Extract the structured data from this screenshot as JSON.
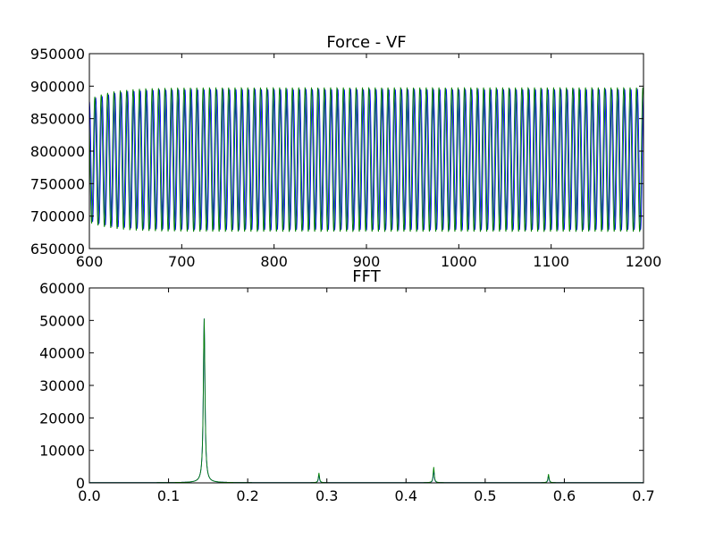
{
  "chart_data": [
    {
      "type": "line",
      "title": "Force - VF",
      "xlabel": "",
      "ylabel": "",
      "xlim": [
        600,
        1200
      ],
      "ylim": [
        650000,
        950000
      ],
      "xticks": [
        600,
        700,
        800,
        900,
        1000,
        1100,
        1200
      ],
      "yticks": [
        650000,
        700000,
        750000,
        800000,
        850000,
        900000,
        950000
      ],
      "grid": false,
      "legend": "none",
      "oscillation": {
        "period": 6.9,
        "start_max": 880000,
        "start_min": 690000,
        "settled_max": 898000,
        "settled_min": 676000
      },
      "series": [
        {
          "color": "#0000ff",
          "phase": 0.0,
          "max_offset": -3000,
          "min_offset": 3000
        },
        {
          "color": "#008000",
          "phase": 0.9,
          "max_offset": 0,
          "min_offset": 0
        }
      ]
    },
    {
      "type": "line",
      "title": "FFT",
      "xlabel": "",
      "ylabel": "",
      "xlim": [
        0.0,
        0.7
      ],
      "ylim": [
        0,
        60000
      ],
      "xticks": [
        "0.0",
        "0.1",
        "0.2",
        "0.3",
        "0.4",
        "0.5",
        "0.6",
        "0.7"
      ],
      "yticks": [
        0,
        10000,
        20000,
        30000,
        40000,
        50000,
        60000
      ],
      "grid": false,
      "legend": "none",
      "peaks": [
        {
          "x": 0.145,
          "y": 50500
        },
        {
          "x": 0.29,
          "y": 3000
        },
        {
          "x": 0.435,
          "y": 4800
        },
        {
          "x": 0.58,
          "y": 2600
        }
      ],
      "series": [
        {
          "color": "#0000ff",
          "scale": 0.8
        },
        {
          "color": "#008000",
          "scale": 1.0
        }
      ]
    }
  ]
}
